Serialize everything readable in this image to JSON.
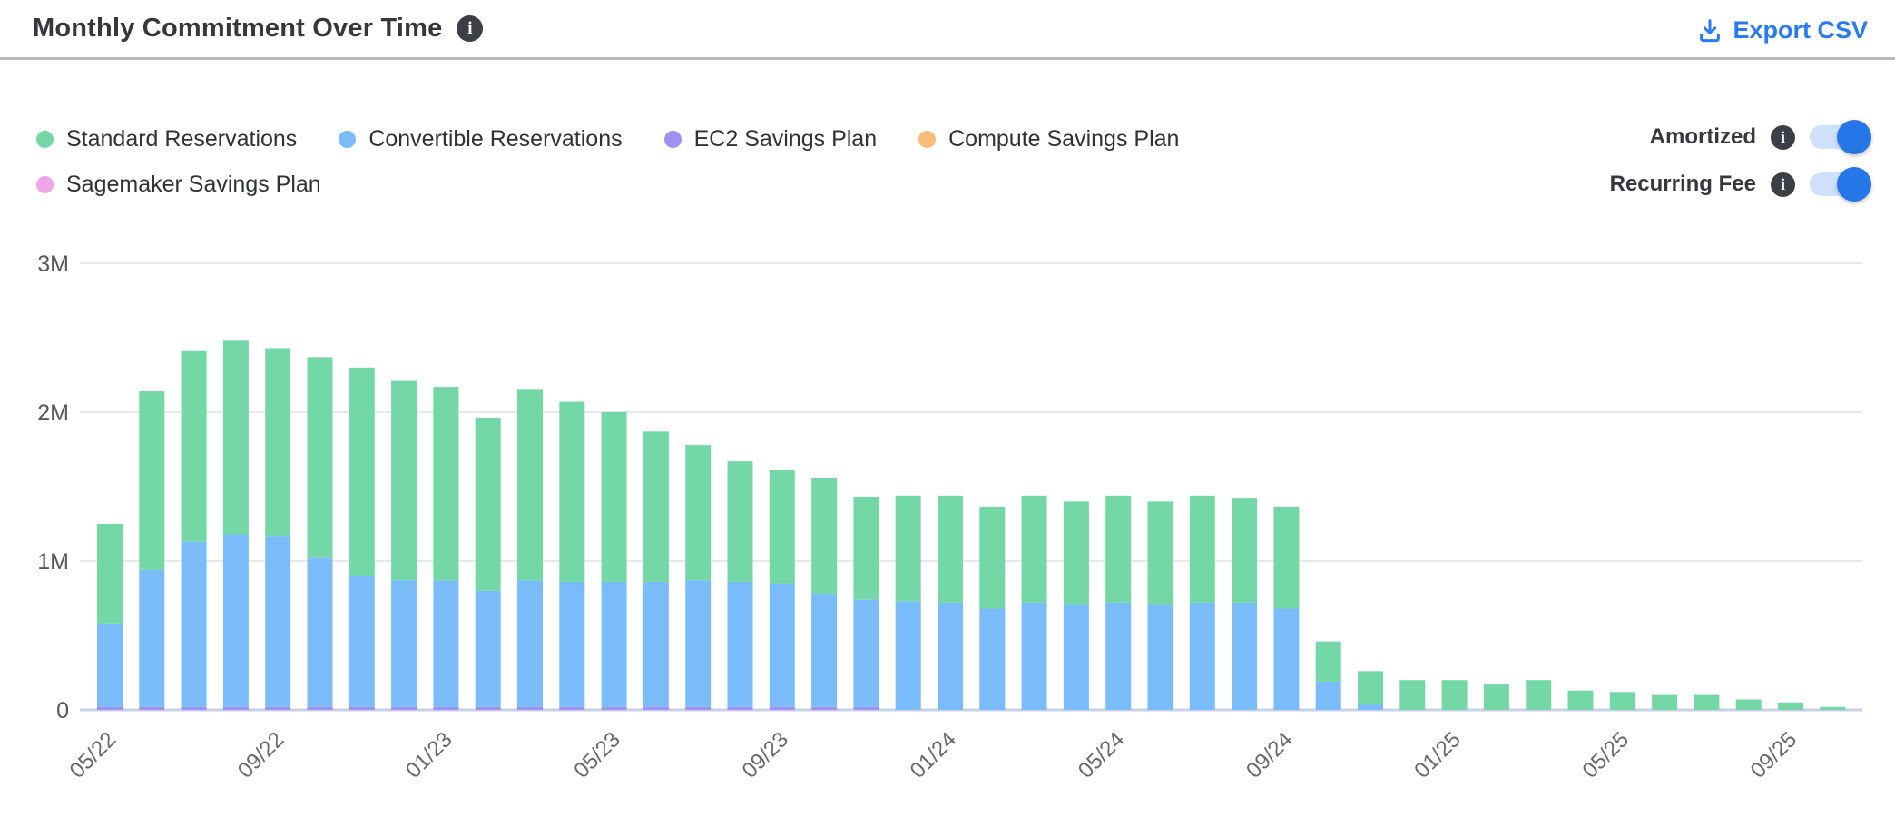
{
  "header": {
    "title": "Monthly Commitment Over Time",
    "title_info_icon": "i",
    "export_label": "Export CSV",
    "export_color": "#2a7bf3"
  },
  "legend": {
    "items": [
      {
        "label": "Standard Reservations",
        "color": "#74d8a6"
      },
      {
        "label": "Convertible Reservations",
        "color": "#7abcf9"
      },
      {
        "label": "EC2 Savings Plan",
        "color": "#9d92f2"
      },
      {
        "label": "Compute Savings Plan",
        "color": "#f6bd77"
      },
      {
        "label": "Sagemaker Savings Plan",
        "color": "#f0a5e9"
      }
    ]
  },
  "toggles": [
    {
      "label": "Amortized",
      "state": "on",
      "info_icon": "i"
    },
    {
      "label": "Recurring Fee",
      "state": "on",
      "info_icon": "i"
    }
  ],
  "toggle_colors": {
    "track": "#cfe1fa",
    "knob": "#2577e8"
  },
  "chart_data": {
    "type": "bar",
    "stacked": true,
    "unit": "USD millions",
    "ylim": [
      0,
      3
    ],
    "y_ticks": [
      {
        "label": "0",
        "value": 0
      },
      {
        "label": "1M",
        "value": 1
      },
      {
        "label": "2M",
        "value": 2
      },
      {
        "label": "3M",
        "value": 3
      }
    ],
    "x_tick_labels": [
      "05/22",
      "09/22",
      "01/23",
      "05/23",
      "09/23",
      "01/24",
      "05/24",
      "09/24",
      "01/25",
      "05/25",
      "09/25"
    ],
    "categories": [
      "05/22",
      "06/22",
      "07/22",
      "08/22",
      "09/22",
      "10/22",
      "11/22",
      "12/22",
      "01/23",
      "02/23",
      "03/23",
      "04/23",
      "05/23",
      "06/23",
      "07/23",
      "08/23",
      "09/23",
      "10/23",
      "11/23",
      "12/23",
      "01/24",
      "02/24",
      "03/24",
      "04/24",
      "05/24",
      "06/24",
      "07/24",
      "08/24",
      "09/24",
      "10/24",
      "11/24",
      "12/24",
      "01/25",
      "02/25",
      "03/25",
      "04/25",
      "05/25",
      "06/25",
      "07/25",
      "08/25",
      "09/25",
      "10/25"
    ],
    "series": [
      {
        "name": "Standard Reservations",
        "color": "#74d8a6",
        "values": [
          0.67,
          1.2,
          1.28,
          1.3,
          1.26,
          1.35,
          1.4,
          1.34,
          1.3,
          1.16,
          1.28,
          1.21,
          1.14,
          1.01,
          0.91,
          0.81,
          0.76,
          0.78,
          0.69,
          0.71,
          0.72,
          0.68,
          0.72,
          0.69,
          0.72,
          0.69,
          0.72,
          0.7,
          0.68,
          0.27,
          0.22,
          0.2,
          0.2,
          0.17,
          0.2,
          0.13,
          0.12,
          0.1,
          0.1,
          0.07,
          0.05,
          0.02
        ]
      },
      {
        "name": "Convertible Reservations",
        "color": "#7abcf9",
        "values": [
          0.56,
          0.92,
          1.11,
          1.16,
          1.15,
          1.0,
          0.88,
          0.85,
          0.85,
          0.78,
          0.85,
          0.84,
          0.84,
          0.84,
          0.85,
          0.84,
          0.83,
          0.76,
          0.72,
          0.73,
          0.72,
          0.68,
          0.72,
          0.71,
          0.72,
          0.71,
          0.72,
          0.72,
          0.68,
          0.19,
          0.04,
          0,
          0,
          0,
          0,
          0,
          0,
          0,
          0,
          0,
          0,
          0
        ]
      },
      {
        "name": "EC2 Savings Plan",
        "color": "#9d92f2",
        "values": [
          0.02,
          0.02,
          0.02,
          0.02,
          0.02,
          0.02,
          0.02,
          0.02,
          0.02,
          0.02,
          0.02,
          0.02,
          0.02,
          0.02,
          0.02,
          0.02,
          0.02,
          0.02,
          0.02,
          0,
          0,
          0,
          0,
          0,
          0,
          0,
          0,
          0,
          0,
          0,
          0,
          0,
          0,
          0,
          0,
          0,
          0,
          0,
          0,
          0,
          0,
          0
        ]
      },
      {
        "name": "Compute Savings Plan",
        "color": "#f6bd77",
        "values": [
          0,
          0,
          0,
          0,
          0,
          0,
          0,
          0,
          0,
          0,
          0,
          0,
          0,
          0,
          0,
          0,
          0,
          0,
          0,
          0,
          0,
          0,
          0,
          0,
          0,
          0,
          0,
          0,
          0,
          0,
          0,
          0,
          0,
          0,
          0,
          0,
          0,
          0,
          0,
          0,
          0,
          0
        ]
      },
      {
        "name": "Sagemaker Savings Plan",
        "color": "#f0a5e9",
        "values": [
          0,
          0,
          0,
          0,
          0,
          0,
          0,
          0,
          0,
          0,
          0,
          0,
          0,
          0,
          0,
          0,
          0,
          0,
          0,
          0,
          0,
          0,
          0,
          0,
          0,
          0,
          0,
          0,
          0,
          0,
          0,
          0,
          0,
          0,
          0,
          0,
          0,
          0,
          0,
          0,
          0,
          0
        ]
      }
    ],
    "grid": true,
    "legend_position": "top-left",
    "gridline_color": "#e8e8ea",
    "baseline_color": "#c9cfe8"
  }
}
